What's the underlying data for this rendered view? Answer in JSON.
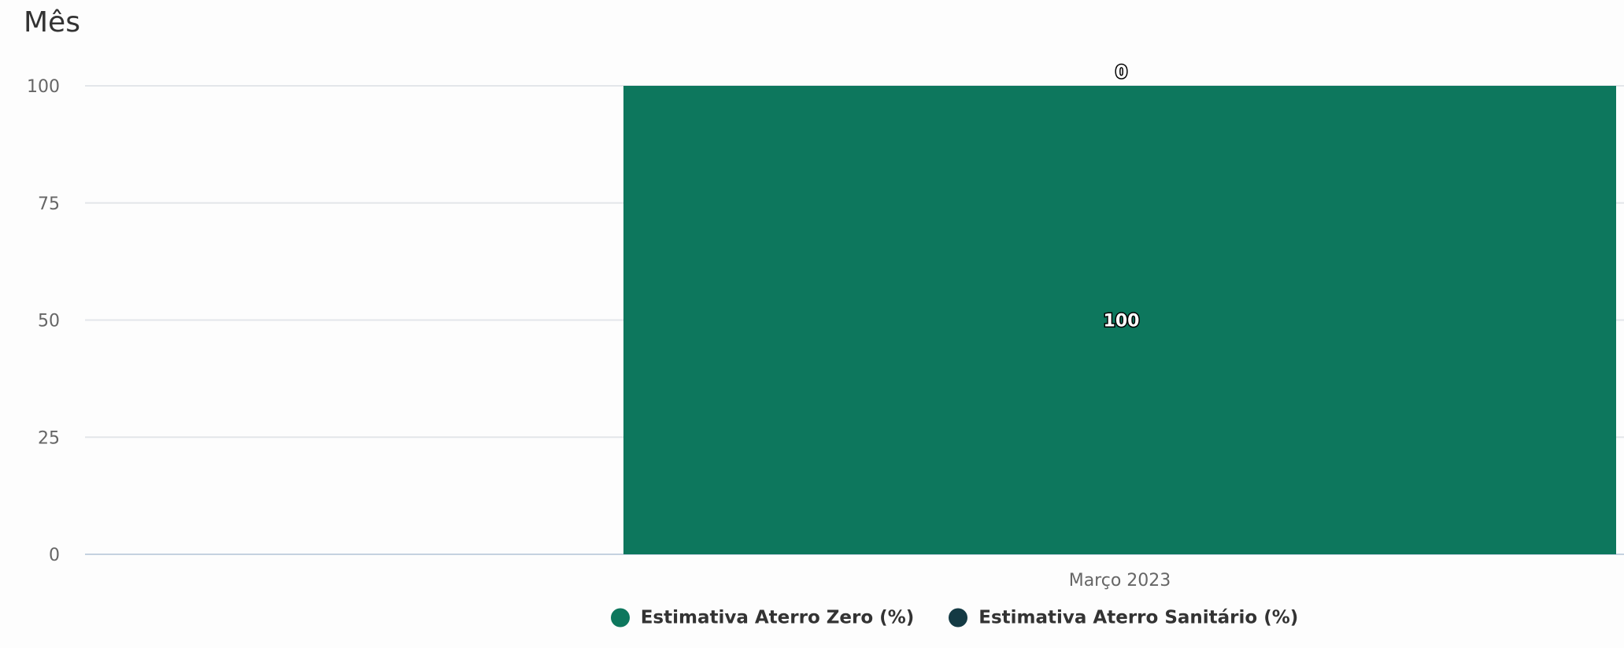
{
  "chart_data": {
    "type": "bar",
    "title": "Mês",
    "categories": [
      "Março 2023"
    ],
    "series": [
      {
        "name": "Estimativa Aterro Zero (%)",
        "values": [
          100
        ],
        "color": "#0d775d"
      },
      {
        "name": "Estimativa Aterro Sanitário (%)",
        "values": [
          0
        ],
        "color": "#143a44"
      }
    ],
    "stacked": true,
    "ylim": [
      0,
      100
    ],
    "yticks": [
      0,
      25,
      50,
      75,
      100
    ],
    "grid": true,
    "legend_position": "bottom-center"
  }
}
